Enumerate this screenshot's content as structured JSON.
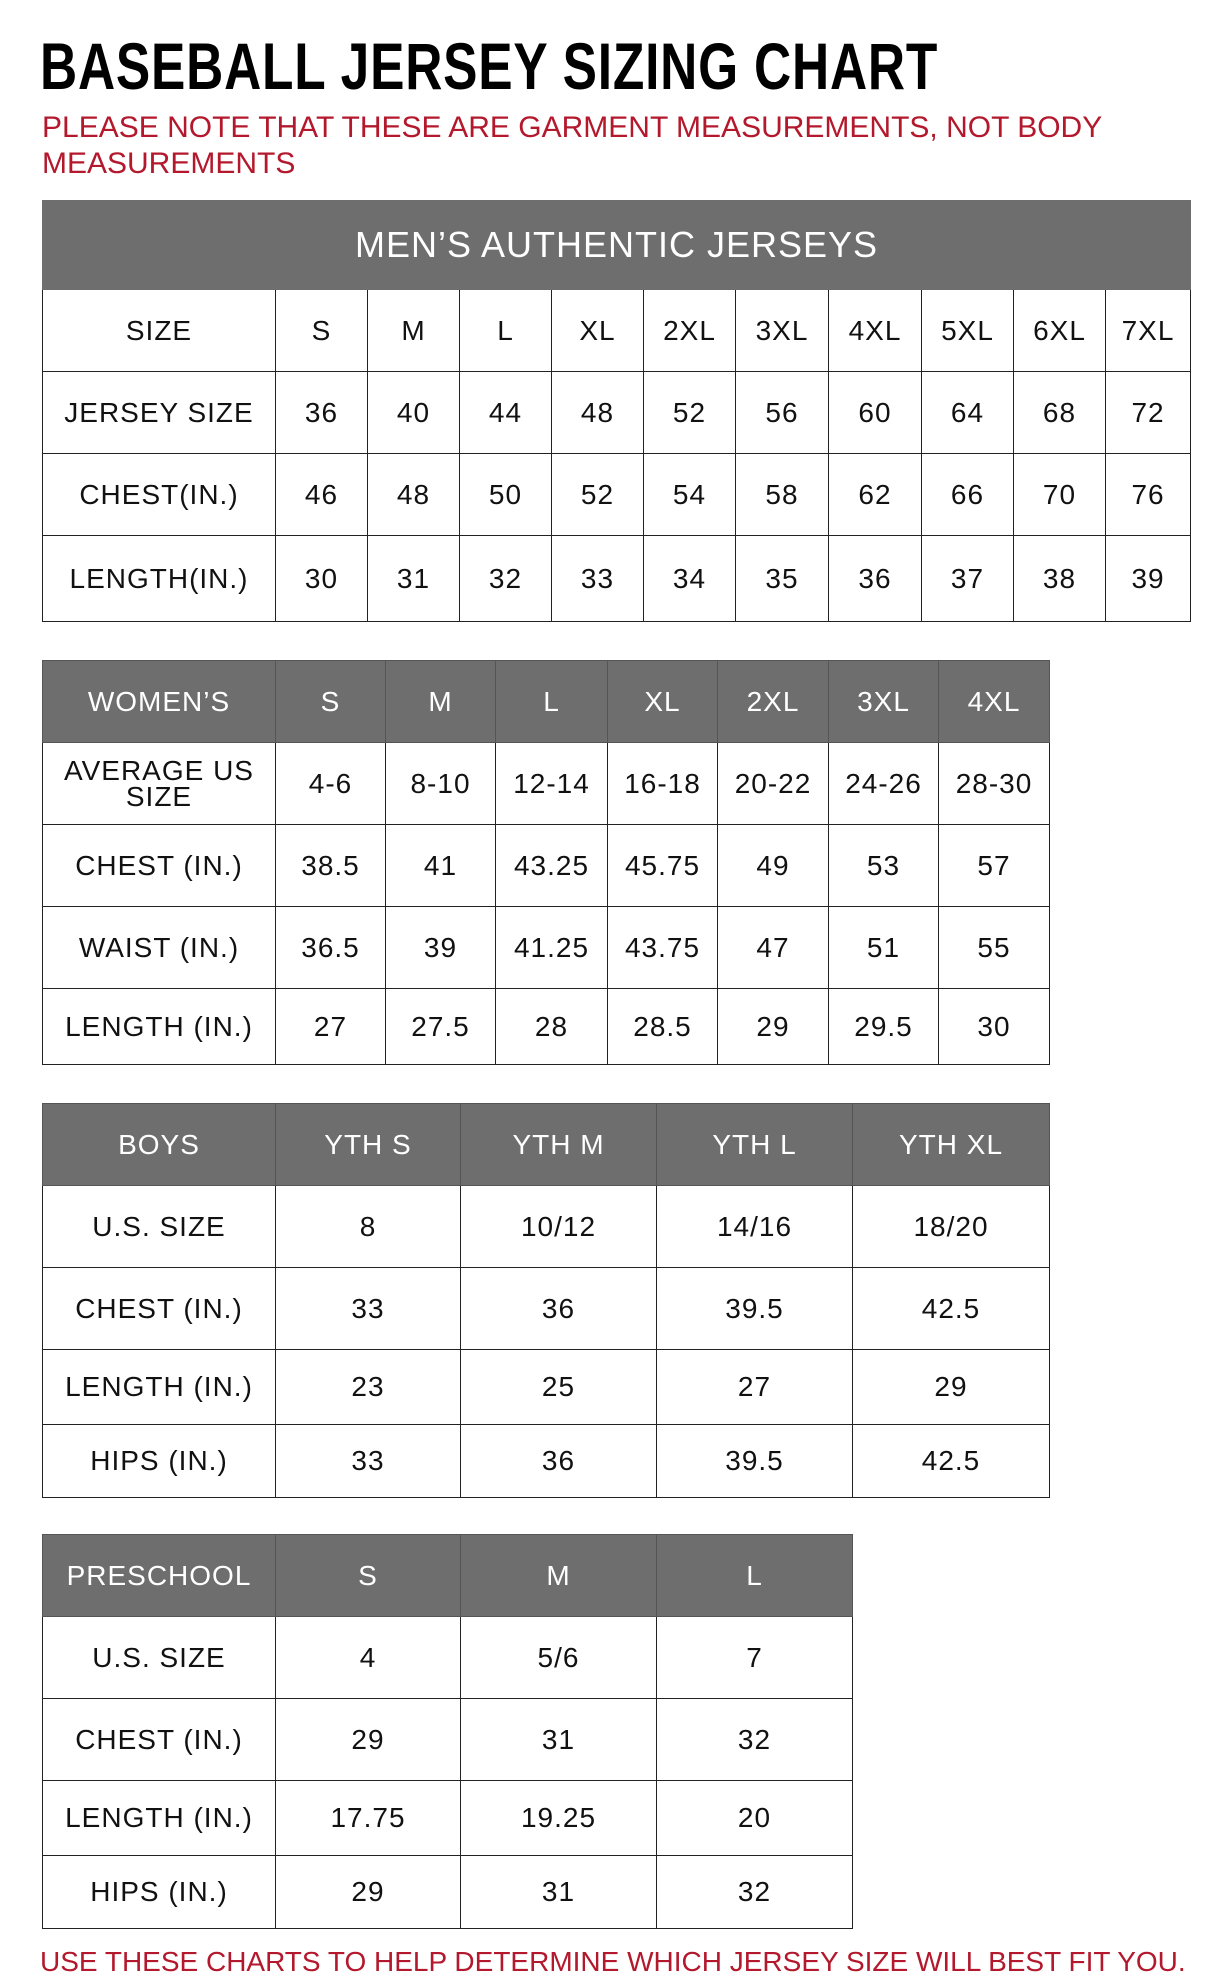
{
  "title": "BASEBALL JERSEY SIZING CHART",
  "note": "PLEASE NOTE THAT THESE ARE GARMENT MEASUREMENTS, NOT BODY MEASUREMENTS",
  "footer": "USE THESE CHARTS TO HELP DETERMINE WHICH JERSEY SIZE WILL BEST FIT YOU.",
  "colors": {
    "header": "#6e6e6e",
    "note": "#b3182c"
  },
  "tables": [
    {
      "caption": "MEN’S AUTHENTIC JERSEYS",
      "header_in_gray": false,
      "rows": [
        [
          "SIZE",
          "S",
          "M",
          "L",
          "XL",
          "2XL",
          "3XL",
          "4XL",
          "5XL",
          "6XL",
          "7XL"
        ],
        [
          "JERSEY SIZE",
          "36",
          "40",
          "44",
          "48",
          "52",
          "56",
          "60",
          "64",
          "68",
          "72"
        ],
        [
          "CHEST(IN.)",
          "46",
          "48",
          "50",
          "52",
          "54",
          "58",
          "62",
          "66",
          "70",
          "76"
        ],
        [
          "LENGTH(IN.)",
          "30",
          "31",
          "32",
          "33",
          "34",
          "35",
          "36",
          "37",
          "38",
          "39"
        ]
      ]
    },
    {
      "caption": "",
      "header_in_gray": true,
      "rows": [
        [
          "WOMEN’S",
          "S",
          "M",
          "L",
          "XL",
          "2XL",
          "3XL",
          "4XL"
        ],
        [
          "AVERAGE US SIZE",
          "4-6",
          "8-10",
          "12-14",
          "16-18",
          "20-22",
          "24-26",
          "28-30"
        ],
        [
          "CHEST (IN.)",
          "38.5",
          "41",
          "43.25",
          "45.75",
          "49",
          "53",
          "57"
        ],
        [
          "WAIST (IN.)",
          "36.5",
          "39",
          "41.25",
          "43.75",
          "47",
          "51",
          "55"
        ],
        [
          "LENGTH (IN.)",
          "27",
          "27.5",
          "28",
          "28.5",
          "29",
          "29.5",
          "30"
        ]
      ]
    },
    {
      "caption": "",
      "header_in_gray": true,
      "rows": [
        [
          "BOYS",
          "YTH S",
          "YTH M",
          "YTH L",
          "YTH XL"
        ],
        [
          "U.S. SIZE",
          "8",
          "10/12",
          "14/16",
          "18/20"
        ],
        [
          "CHEST (IN.)",
          "33",
          "36",
          "39.5",
          "42.5"
        ],
        [
          "LENGTH (IN.)",
          "23",
          "25",
          "27",
          "29"
        ],
        [
          "HIPS (IN.)",
          "33",
          "36",
          "39.5",
          "42.5"
        ]
      ]
    },
    {
      "caption": "",
      "header_in_gray": true,
      "rows": [
        [
          "PRESCHOOL",
          "S",
          "M",
          "L"
        ],
        [
          "U.S. SIZE",
          "4",
          "5/6",
          "7"
        ],
        [
          "CHEST (IN.)",
          "29",
          "31",
          "32"
        ],
        [
          "LENGTH (IN.)",
          "17.75",
          "19.25",
          "20"
        ],
        [
          "HIPS (IN.)",
          "29",
          "31",
          "32"
        ]
      ]
    }
  ]
}
